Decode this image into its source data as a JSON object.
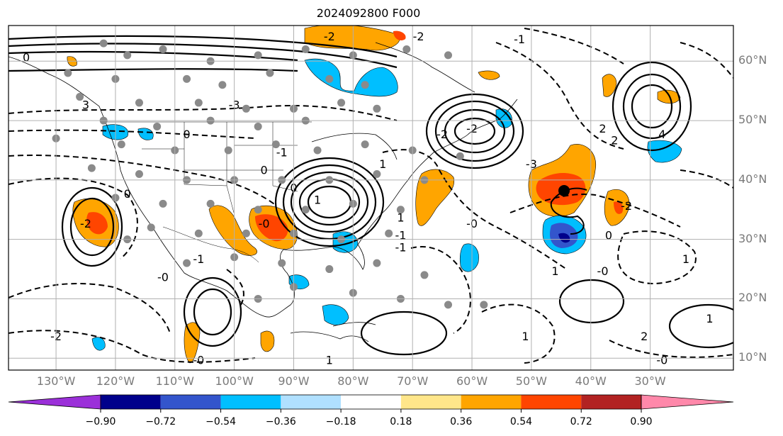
{
  "title": "2024092800 F000",
  "map": {
    "region": "North Atlantic / North America",
    "lon_range": [
      -138,
      -16
    ],
    "lat_range": [
      8,
      66
    ],
    "grid": true,
    "lat_labels": [
      "10°N",
      "20°N",
      "30°N",
      "40°N",
      "50°N",
      "60°N"
    ],
    "lat_values": [
      10,
      20,
      30,
      40,
      50,
      60
    ],
    "lon_labels": [
      "130°W",
      "120°W",
      "110°W",
      "100°W",
      "90°W",
      "80°W",
      "70°W",
      "60°W",
      "50°W",
      "40°W",
      "30°W"
    ],
    "lon_values": [
      -130,
      -120,
      -110,
      -100,
      -90,
      -80,
      -70,
      -60,
      -50,
      -40,
      -30
    ],
    "contour_labels": [
      "-2",
      "-2",
      "-1",
      "0",
      "-3",
      "3",
      "-2",
      "-1",
      "0",
      "1",
      "-1",
      "-1",
      "0",
      "1",
      "-3",
      "4",
      "-2",
      "2",
      "-0",
      "-0",
      "0",
      "1",
      "1",
      "0",
      "-1",
      "-0",
      "2",
      "-2",
      "1",
      "-0",
      "-2",
      "0",
      "1",
      "-0",
      "1",
      "1",
      "-2",
      "2",
      "-0"
    ],
    "storm_marker": {
      "lon": -44.5,
      "lat": 38.2
    }
  },
  "colorbar": {
    "ticks": [
      "−0.90",
      "−0.72",
      "−0.54",
      "−0.36",
      "−0.18",
      "0.18",
      "0.36",
      "0.54",
      "0.72",
      "0.90"
    ],
    "colors": [
      "#9b30d9",
      "#00008b",
      "#3355cc",
      "#00bfff",
      "#b0e0ff",
      "#ffffff",
      "#ffe68a",
      "#ffa500",
      "#ff4500",
      "#b22222",
      "#ff88aa"
    ]
  }
}
